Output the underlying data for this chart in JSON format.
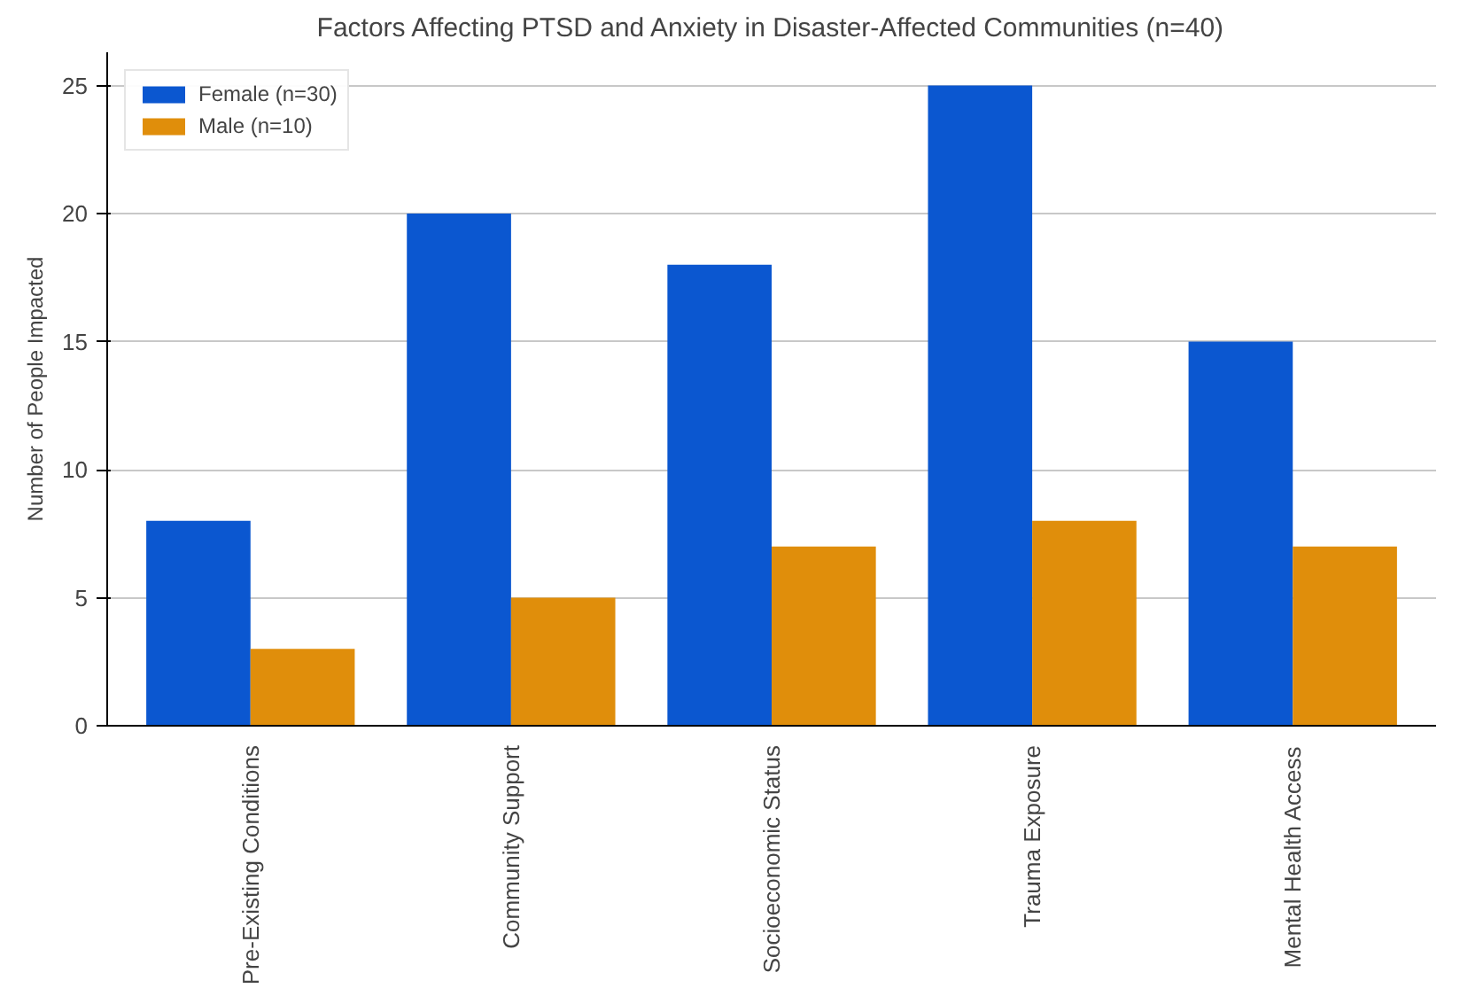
{
  "chart_data": {
    "type": "bar",
    "title": "Factors Affecting PTSD and Anxiety in Disaster-Affected Communities (n=40)",
    "ylabel": "Number of People Impacted",
    "categories": [
      "Pre-Existing Conditions",
      "Community Support",
      "Socioeconomic Status",
      "Trauma Exposure",
      "Mental Health Access"
    ],
    "series": [
      {
        "name": "Female (n=30)",
        "color": "#0b57d0",
        "values": [
          8,
          20,
          18,
          25,
          15
        ]
      },
      {
        "name": "Male (n=10)",
        "color": "#e08e0b",
        "values": [
          3,
          5,
          7,
          8,
          7
        ]
      }
    ],
    "ylim": [
      0,
      26.3
    ],
    "yticks": [
      0,
      5,
      10,
      15,
      20,
      25
    ],
    "grid": "y",
    "legend": "top left"
  }
}
